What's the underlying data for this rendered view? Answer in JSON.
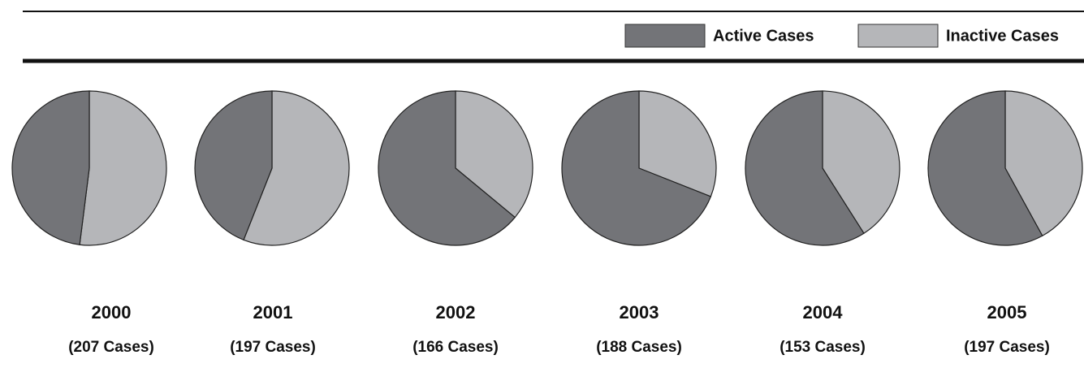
{
  "chart_data": [
    {
      "type": "pie",
      "title": "2000",
      "subtitle": "(207 Cases)",
      "categories": [
        "Active Cases",
        "Inactive Cases"
      ],
      "values": [
        48,
        52
      ],
      "colors": [
        "#737478",
        "#b5b6b9"
      ]
    },
    {
      "type": "pie",
      "title": "2001",
      "subtitle": "(197 Cases)",
      "categories": [
        "Active Cases",
        "Inactive Cases"
      ],
      "values": [
        44,
        56
      ],
      "colors": [
        "#737478",
        "#b5b6b9"
      ]
    },
    {
      "type": "pie",
      "title": "2002",
      "subtitle": "(166 Cases)",
      "categories": [
        "Active Cases",
        "Inactive Cases"
      ],
      "values": [
        64,
        36
      ],
      "colors": [
        "#737478",
        "#b5b6b9"
      ]
    },
    {
      "type": "pie",
      "title": "2003",
      "subtitle": "(188 Cases)",
      "categories": [
        "Active Cases",
        "Inactive Cases"
      ],
      "values": [
        69,
        31
      ],
      "colors": [
        "#737478",
        "#b5b6b9"
      ]
    },
    {
      "type": "pie",
      "title": "2004",
      "subtitle": "(153 Cases)",
      "categories": [
        "Active Cases",
        "Inactive Cases"
      ],
      "values": [
        59,
        41
      ],
      "colors": [
        "#737478",
        "#b5b6b9"
      ]
    },
    {
      "type": "pie",
      "title": "2005",
      "subtitle": "(197 Cases)",
      "categories": [
        "Active Cases",
        "Inactive Cases"
      ],
      "values": [
        58,
        42
      ],
      "colors": [
        "#737478",
        "#b5b6b9"
      ]
    }
  ]
}
